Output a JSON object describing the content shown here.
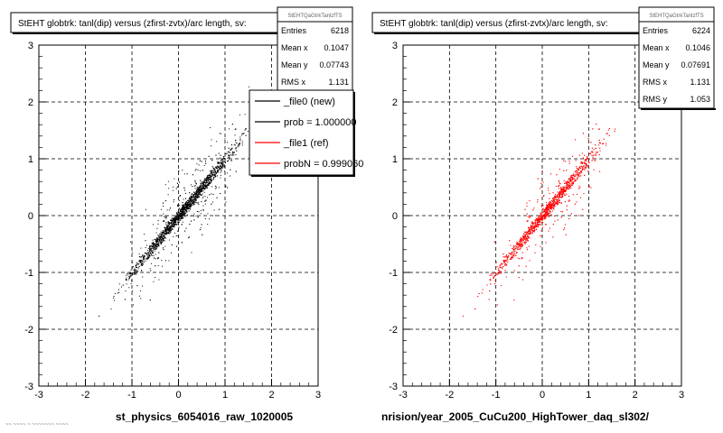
{
  "chart_data": [
    {
      "type": "scatter",
      "title": "StEHT globtrk: tanl(dip) versus (zfirst-zvtx)/arc length, sv:",
      "xlabel": "st_physics_6054016_raw_1020005",
      "xlim": [
        -3,
        3
      ],
      "ylim": [
        -3,
        3
      ],
      "xticks": [
        "-3",
        "-2",
        "-1",
        "0",
        "1",
        "2",
        "3"
      ],
      "yticks": [
        "-3",
        "-2",
        "-1",
        "0",
        "1",
        "2",
        "3"
      ],
      "grid": true,
      "color": "#000000",
      "series": [
        {
          "relation": "y = x",
          "entries": 6218
        }
      ],
      "stats": {
        "name": "StEHTQaGtrkTanlzfTS",
        "rows": [
          {
            "label": "Entries",
            "value": "6218"
          },
          {
            "label": "Mean x",
            "value": "0.1047"
          },
          {
            "label": "Mean y",
            "value": "0.07743"
          },
          {
            "label": "RMS x",
            "value": "1.131"
          }
        ]
      },
      "legend": {
        "placement": "top-right",
        "entries": [
          {
            "label": "_file0 (new)",
            "color": "#000000"
          },
          {
            "label": "prob = 1.000000",
            "color": "#000000"
          },
          {
            "label": "_file1 (ref)",
            "color": "#ff0000"
          },
          {
            "label": "probN = 0.999060",
            "color": "#ff0000"
          }
        ]
      }
    },
    {
      "type": "scatter",
      "title": "StEHT globtrk: tanl(dip) versus (zfirst-zvtx)/arc length, sv:",
      "xlabel": "nrision/year_2005_CuCu200_HighTower_daq_sl302/",
      "xlim": [
        -3,
        3
      ],
      "ylim": [
        -3,
        3
      ],
      "xticks": [
        "-3",
        "-2",
        "-1",
        "0",
        "1",
        "2",
        "3"
      ],
      "yticks": [
        "-3",
        "-2",
        "-1",
        "0",
        "1",
        "2",
        "3"
      ],
      "grid": true,
      "color": "#ff0000",
      "series": [
        {
          "relation": "y = x",
          "entries": 6224
        }
      ],
      "stats": {
        "name": "StEHTQaGtrkTanlzfTS",
        "rows": [
          {
            "label": "Entries",
            "value": "6224"
          },
          {
            "label": "Mean x",
            "value": "0.1046"
          },
          {
            "label": "Mean y",
            "value": "0.07691"
          },
          {
            "label": "RMS x",
            "value": "1.131"
          },
          {
            "label": "RMS y",
            "value": "1.053"
          }
        ]
      }
    }
  ],
  "footer_text": "~~ ~~~~ ~ ~~~~~~~ ~~~~"
}
